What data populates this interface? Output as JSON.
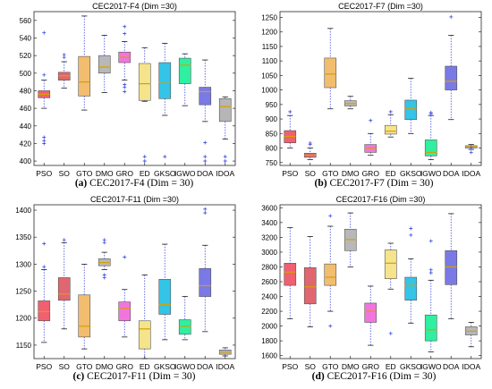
{
  "categories": [
    "PSO",
    "SO",
    "GTO",
    "DMO",
    "GRO",
    "ED",
    "GKSO",
    "IGWO",
    "DOA",
    "IDOA"
  ],
  "box_colors": [
    "#f06070",
    "#e06670",
    "#f2bd6e",
    "#b8b8b8",
    "#f275de",
    "#f5e48c",
    "#33c4e8",
    "#2ef0a0",
    "#7a7ae6",
    "#b6b6b6"
  ],
  "median_color": "#d6a000",
  "outlier_color": "#3b48e0",
  "chart_data": [
    {
      "type": "box",
      "title": "CEC2017-F4 (Dim =30)",
      "caption_letter": "(a)",
      "caption_text": "CEC2017-F4 (Dim = 30)",
      "ylim": [
        395,
        570
      ],
      "yticks": [
        400,
        420,
        440,
        460,
        480,
        500,
        520,
        540,
        560
      ],
      "boxes": [
        {
          "min": 460,
          "q1": 472,
          "median": 476,
          "q3": 480,
          "max": 492,
          "outliers": [
            498,
            546,
            427,
            423,
            420
          ]
        },
        {
          "min": 483,
          "q1": 492,
          "median": 497,
          "q3": 501,
          "max": 513,
          "outliers": [
            518,
            521
          ]
        },
        {
          "min": 458,
          "q1": 474,
          "median": 490,
          "q3": 519,
          "max": 565,
          "outliers": []
        },
        {
          "min": 478,
          "q1": 500,
          "median": 507,
          "q3": 520,
          "max": 543,
          "outliers": []
        },
        {
          "min": 492,
          "q1": 512,
          "median": 518,
          "q3": 524,
          "max": 536,
          "outliers": [
            553,
            545,
            487,
            484,
            479
          ]
        },
        {
          "min": 468,
          "q1": 469,
          "median": 488,
          "q3": 511,
          "max": 529,
          "outliers": [
            405,
            400
          ]
        },
        {
          "min": 452,
          "q1": 471,
          "median": 490,
          "q3": 512,
          "max": 534,
          "outliers": [
            405
          ]
        },
        {
          "min": 463,
          "q1": 488,
          "median": 509,
          "q3": 517,
          "max": 522,
          "outliers": []
        },
        {
          "min": 445,
          "q1": 464,
          "median": 479,
          "q3": 484,
          "max": 515,
          "outliers": [
            421,
            405,
            400
          ]
        },
        {
          "min": 425,
          "q1": 445,
          "median": 462,
          "q3": 471,
          "max": 473,
          "outliers": [
            405,
            400
          ]
        }
      ]
    },
    {
      "type": "box",
      "title": "CEC2017-F7 (Dim =30)",
      "caption_letter": "(b)",
      "caption_text": "CEC2017-F7 (Dim = 30)",
      "ylim": [
        740,
        1270
      ],
      "yticks": [
        750,
        800,
        850,
        900,
        950,
        1000,
        1050,
        1100,
        1150,
        1200,
        1250
      ],
      "boxes": [
        {
          "min": 800,
          "q1": 818,
          "median": 840,
          "q3": 860,
          "max": 912,
          "outliers": [
            925
          ]
        },
        {
          "min": 760,
          "q1": 768,
          "median": 775,
          "q3": 782,
          "max": 800,
          "outliers": [
            812,
            817
          ]
        },
        {
          "min": 935,
          "q1": 1008,
          "median": 1055,
          "q3": 1110,
          "max": 1212,
          "outliers": []
        },
        {
          "min": 935,
          "q1": 945,
          "median": 953,
          "q3": 963,
          "max": 978,
          "outliers": []
        },
        {
          "min": 775,
          "q1": 785,
          "median": 800,
          "q3": 812,
          "max": 850,
          "outliers": [
            895
          ]
        },
        {
          "min": 838,
          "q1": 848,
          "median": 858,
          "q3": 878,
          "max": 915,
          "outliers": [
            925
          ]
        },
        {
          "min": 850,
          "q1": 898,
          "median": 935,
          "q3": 965,
          "max": 1040,
          "outliers": []
        },
        {
          "min": 760,
          "q1": 773,
          "median": 785,
          "q3": 828,
          "max": 912,
          "outliers": [
            922,
            918
          ]
        },
        {
          "min": 898,
          "q1": 1000,
          "median": 1030,
          "q3": 1082,
          "max": 1188,
          "outliers": [
            1252
          ]
        },
        {
          "min": 795,
          "q1": 800,
          "median": 805,
          "q3": 808,
          "max": 812,
          "outliers": [
            800,
            785
          ]
        }
      ]
    },
    {
      "type": "box",
      "title": "CEC2017-F11 (Dim =30)",
      "caption_letter": "(c)",
      "caption_text": "CEC2017-F11 (Dim = 30)",
      "ylim": [
        1125,
        1410
      ],
      "yticks": [
        1150,
        1200,
        1250,
        1300,
        1350,
        1400
      ],
      "boxes": [
        {
          "min": 1155,
          "q1": 1195,
          "median": 1212,
          "q3": 1232,
          "max": 1290,
          "outliers": [
            1295,
            1338
          ]
        },
        {
          "min": 1180,
          "q1": 1233,
          "median": 1245,
          "q3": 1275,
          "max": 1340,
          "outliers": [
            1345
          ]
        },
        {
          "min": 1143,
          "q1": 1165,
          "median": 1185,
          "q3": 1243,
          "max": 1300,
          "outliers": []
        },
        {
          "min": 1290,
          "q1": 1297,
          "median": 1303,
          "q3": 1310,
          "max": 1322,
          "outliers": [
            1340,
            1345,
            1280,
            1275
          ]
        },
        {
          "min": 1165,
          "q1": 1195,
          "median": 1218,
          "q3": 1230,
          "max": 1253,
          "outliers": [
            1313
          ]
        },
        {
          "min": 1125,
          "q1": 1143,
          "median": 1180,
          "q3": 1195,
          "max": 1280,
          "outliers": []
        },
        {
          "min": 1160,
          "q1": 1207,
          "median": 1225,
          "q3": 1272,
          "max": 1337,
          "outliers": []
        },
        {
          "min": 1160,
          "q1": 1170,
          "median": 1185,
          "q3": 1197,
          "max": 1240,
          "outliers": []
        },
        {
          "min": 1175,
          "q1": 1240,
          "median": 1260,
          "q3": 1292,
          "max": 1335,
          "outliers": [
            1395,
            1402
          ]
        },
        {
          "min": 1130,
          "q1": 1133,
          "median": 1137,
          "q3": 1141,
          "max": 1145,
          "outliers": []
        }
      ]
    },
    {
      "type": "box",
      "title": "CEC2017-F16 (Dim =30)",
      "caption_letter": "(d)",
      "caption_text": "CEC2017-F16 (Dim = 30)",
      "ylim": [
        1560,
        3640
      ],
      "yticks": [
        1600,
        1800,
        2000,
        2200,
        2400,
        2600,
        2800,
        3000,
        3200,
        3400,
        3600
      ],
      "boxes": [
        {
          "min": 2100,
          "q1": 2550,
          "median": 2730,
          "q3": 2850,
          "max": 3330,
          "outliers": []
        },
        {
          "min": 1990,
          "q1": 2300,
          "median": 2530,
          "q3": 2790,
          "max": 3210,
          "outliers": []
        },
        {
          "min": 2200,
          "q1": 2550,
          "median": 2660,
          "q3": 2840,
          "max": 3350,
          "outliers": [
            3490,
            2000
          ]
        },
        {
          "min": 2800,
          "q1": 3020,
          "median": 3170,
          "q3": 3310,
          "max": 3530,
          "outliers": []
        },
        {
          "min": 1740,
          "q1": 2050,
          "median": 2200,
          "q3": 2310,
          "max": 2540,
          "outliers": []
        },
        {
          "min": 2500,
          "q1": 2640,
          "median": 2850,
          "q3": 3030,
          "max": 3120,
          "outliers": [
            1900
          ]
        },
        {
          "min": 2040,
          "q1": 2350,
          "median": 2550,
          "q3": 2660,
          "max": 2910,
          "outliers": [
            3230,
            3320
          ]
        },
        {
          "min": 1650,
          "q1": 1800,
          "median": 1950,
          "q3": 2150,
          "max": 2620,
          "outliers": [
            2720,
            2760,
            3150
          ]
        },
        {
          "min": 2100,
          "q1": 2560,
          "median": 2800,
          "q3": 3020,
          "max": 3520,
          "outliers": []
        },
        {
          "min": 1720,
          "q1": 1880,
          "median": 1930,
          "q3": 1990,
          "max": 2050,
          "outliers": []
        }
      ]
    }
  ]
}
